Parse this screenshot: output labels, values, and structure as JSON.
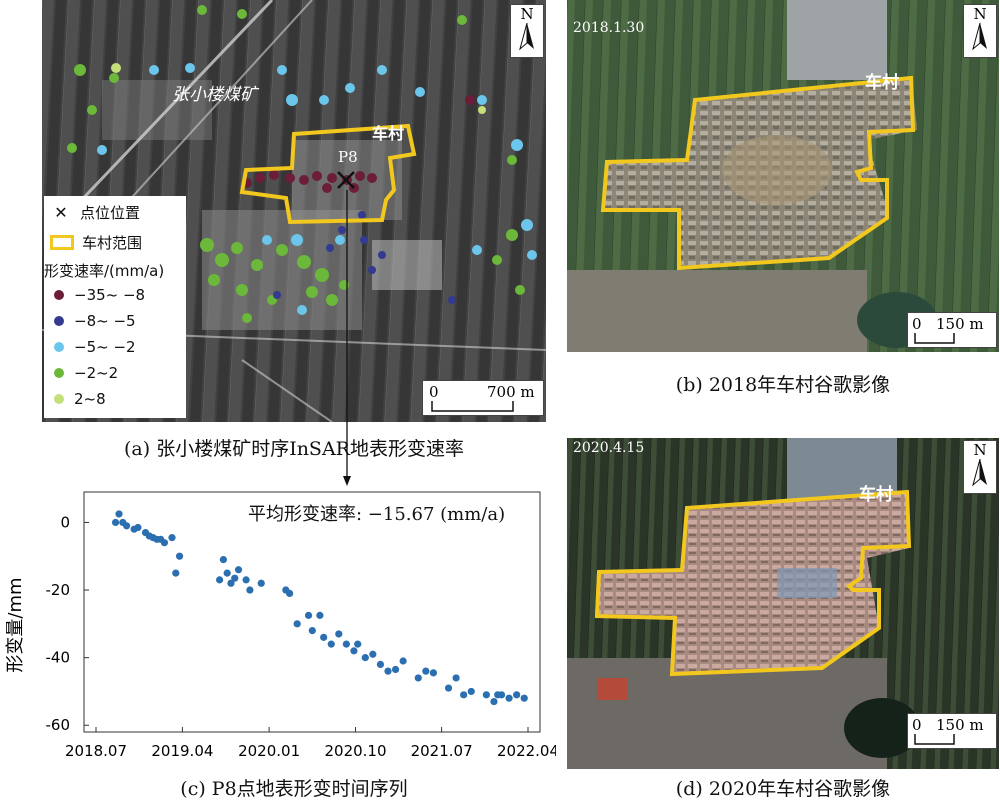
{
  "panel_a": {
    "mine_label": "张小楼煤矿",
    "village_label": "车村",
    "point_label": "P8",
    "north_label": "N",
    "scale_zero": "0",
    "scale_label": "700 m",
    "caption": "(a) 张小楼煤矿时序InSAR地表形变速率",
    "legend": {
      "point_position": "点位位置",
      "village_extent": "车村范围",
      "rate_title": "形变速率/(mm/a)",
      "classes": [
        {
          "label": "−35~ −8",
          "color": "#6b1d3a"
        },
        {
          "label": "−8~ −5",
          "color": "#343a8f"
        },
        {
          "label": "−5~ −2",
          "color": "#6cc5ea"
        },
        {
          "label": "−2~2",
          "color": "#6cb83a"
        },
        {
          "label": "2~8",
          "color": "#c5e07a"
        }
      ]
    }
  },
  "panel_b": {
    "date": "2018.1.30",
    "village_label": "车村",
    "north_label": "N",
    "scale_zero": "0",
    "scale_label": "150 m",
    "caption": "(b) 2018年车村谷歌影像"
  },
  "panel_c": {
    "caption": "(c) P8点地表形变时间序列",
    "annotation": "平均形变速率: −15.67 (mm/a)"
  },
  "panel_d": {
    "date": "2020.4.15",
    "village_label": "车村",
    "north_label": "N",
    "scale_zero": "0",
    "scale_label": "150 m",
    "caption": "(d) 2020年车村谷歌影像"
  },
  "colors": {
    "boundary": "#f2c81e",
    "point": "#2c6fb0"
  },
  "chart_data": {
    "type": "scatter",
    "title": "",
    "xlabel": "",
    "ylabel": "形变量/mm",
    "x_ticks": [
      "2018.07",
      "2019.04",
      "2020.01",
      "2020.10",
      "2021.07",
      "2022.04"
    ],
    "y_ticks": [
      0,
      -20,
      -40,
      -60
    ],
    "ylim": [
      -62,
      9
    ],
    "xlim": [
      "2018-07-01",
      "2022-04-01"
    ],
    "series": [
      {
        "x": [
          "2018-09-01",
          "2018-09-12",
          "2018-09-24",
          "2018-10-06",
          "2018-10-30",
          "2018-11-11",
          "2018-12-05",
          "2018-12-17",
          "2018-12-29",
          "2019-01-10",
          "2019-01-22",
          "2019-02-03",
          "2019-02-27",
          "2019-03-11",
          "2019-03-23",
          "2019-07-28",
          "2019-08-09",
          "2019-08-21",
          "2019-09-02",
          "2019-09-14",
          "2019-09-26",
          "2019-10-20",
          "2019-11-01",
          "2019-12-07",
          "2020-02-23",
          "2020-03-06",
          "2020-03-30",
          "2020-05-05",
          "2020-05-17",
          "2020-06-10",
          "2020-06-22",
          "2020-07-16",
          "2020-08-09",
          "2020-09-02",
          "2020-09-26",
          "2020-10-08",
          "2020-11-01",
          "2020-11-25",
          "2020-12-19",
          "2021-01-12",
          "2021-02-05",
          "2021-03-01",
          "2021-04-18",
          "2021-05-12",
          "2021-06-05",
          "2021-07-23",
          "2021-08-16",
          "2021-09-09",
          "2021-10-03",
          "2021-11-20",
          "2021-12-14",
          "2021-12-26",
          "2022-01-07",
          "2022-01-31",
          "2022-02-24",
          "2022-03-20"
        ],
        "y": [
          0,
          2.5,
          0,
          -1,
          -2,
          -1.5,
          -3,
          -4,
          -4.5,
          -5,
          -5,
          -6,
          -4.5,
          -15,
          -10,
          -17,
          -11,
          -15,
          -18,
          -16.5,
          -14,
          -17,
          -20,
          -18,
          -20,
          -21,
          -30,
          -27.5,
          -32,
          -27.5,
          -34,
          -36,
          -33,
          -36,
          -38,
          -36,
          -40,
          -39,
          -42,
          -44,
          -43.5,
          -41,
          -46,
          -44,
          -44.5,
          -49,
          -46,
          -51,
          -50,
          -51,
          -53,
          -51,
          -51,
          -52,
          -51,
          -52
        ]
      }
    ]
  }
}
